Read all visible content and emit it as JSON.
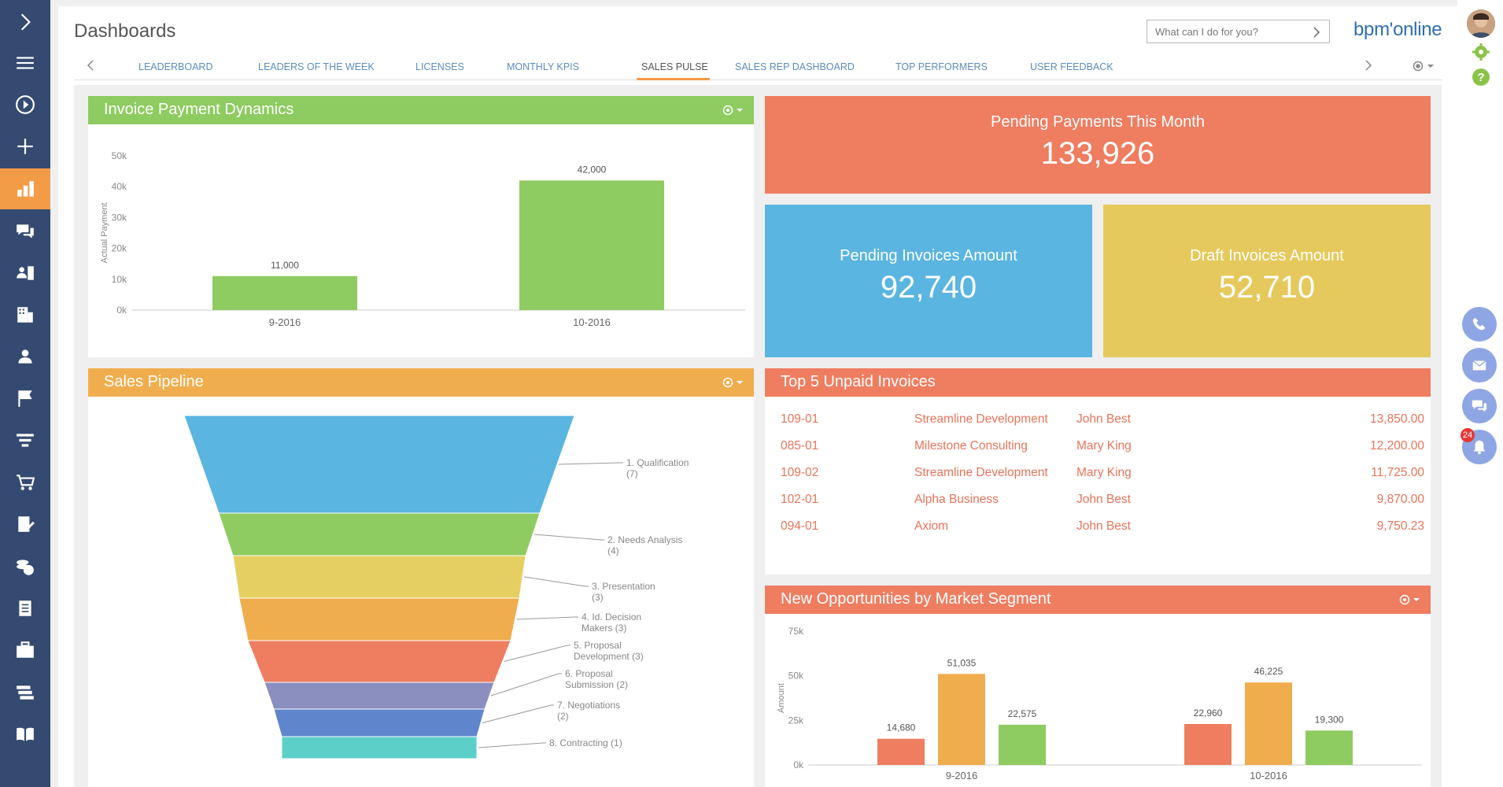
{
  "app": {
    "title": "Dashboards",
    "command_placeholder": "What can I do for you?",
    "logo": "bpm'online"
  },
  "tabs": [
    {
      "label": "LEADERBOARD"
    },
    {
      "label": "LEADERS OF THE WEEK"
    },
    {
      "label": "LICENSES"
    },
    {
      "label": "MONTHLY KPIS"
    },
    {
      "label": "SALES PULSE",
      "active": true
    },
    {
      "label": "SALES REP DASHBOARD"
    },
    {
      "label": "TOP PERFORMERS"
    },
    {
      "label": "USER FEEDBACK"
    }
  ],
  "left_nav": [
    {
      "icon": "chevron-right-icon"
    },
    {
      "icon": "menu-icon"
    },
    {
      "icon": "play-icon"
    },
    {
      "icon": "plus-icon"
    },
    {
      "icon": "bar-chart-icon",
      "active": true
    },
    {
      "icon": "chat-icon"
    },
    {
      "icon": "contacts-icon"
    },
    {
      "icon": "building-icon"
    },
    {
      "icon": "person-icon"
    },
    {
      "icon": "flag-icon"
    },
    {
      "icon": "funnel-icon"
    },
    {
      "icon": "cart-icon"
    },
    {
      "icon": "document-edit-icon"
    },
    {
      "icon": "coins-icon"
    },
    {
      "icon": "document-icon"
    },
    {
      "icon": "briefcase-icon"
    },
    {
      "icon": "stack-icon"
    },
    {
      "icon": "book-icon"
    }
  ],
  "right_sidebar": {
    "actions": [
      {
        "icon": "phone-icon"
      },
      {
        "icon": "email-icon"
      },
      {
        "icon": "chat-icon"
      },
      {
        "icon": "bell-icon"
      }
    ],
    "notification_count": "24"
  },
  "colors": {
    "green": "#8ecb60",
    "orange": "#f0ad4e",
    "red": "#ef7d60",
    "blue": "#5ab5e1",
    "yellow": "#e6c95c",
    "nav_bg": "#354a70",
    "accent": "#f39c48"
  },
  "widgets": {
    "invoice_dynamics": {
      "title": "Invoice Payment Dynamics"
    },
    "pending_payments": {
      "title": "Pending Payments This Month",
      "value": "133,926"
    },
    "pending_invoices": {
      "title": "Pending Invoices Amount",
      "value": "92,740"
    },
    "draft_invoices": {
      "title": "Draft Invoices Amount",
      "value": "52,710"
    },
    "sales_pipeline": {
      "title": "Sales Pipeline"
    },
    "top_unpaid": {
      "title": "Top 5 Unpaid Invoices",
      "rows": [
        {
          "number": "109-01",
          "account": "Streamline Development",
          "owner": "John Best",
          "amount": "13,850.00"
        },
        {
          "number": "085-01",
          "account": "Milestone Consulting",
          "owner": "Mary King",
          "amount": "12,200.00"
        },
        {
          "number": "109-02",
          "account": "Streamline Development",
          "owner": "Mary King",
          "amount": "11,725.00"
        },
        {
          "number": "102-01",
          "account": "Alpha Business",
          "owner": "John Best",
          "amount": "9,870.00"
        },
        {
          "number": "094-01",
          "account": "Axiom",
          "owner": "John Best",
          "amount": "9,750.23"
        }
      ]
    },
    "new_opportunities": {
      "title": "New Opportunities by Market Segment"
    }
  },
  "chart_data": [
    {
      "type": "bar",
      "title": "Invoice Payment Dynamics",
      "categories": [
        "9-2016",
        "10-2016"
      ],
      "values": [
        11000,
        42000
      ],
      "value_labels": [
        "11,000",
        "42,000"
      ],
      "ylabel": "Actual Payment",
      "ylim": [
        0,
        50000
      ],
      "yticks": [
        "0k",
        "10k",
        "20k",
        "30k",
        "40k",
        "50k"
      ],
      "color": "#8ecb60"
    },
    {
      "type": "funnel",
      "title": "Sales Pipeline",
      "stages": [
        {
          "label": "1. Qualification",
          "count": "(7)",
          "color": "#5ab5e1"
        },
        {
          "label": "2. Needs Analysis",
          "count": "(4)",
          "color": "#8ecb60"
        },
        {
          "label": "3. Presentation",
          "count": "(3)",
          "color": "#e6cf62"
        },
        {
          "label": "4. Id. Decision",
          "count": "Makers (3)",
          "color": "#f0ad4e"
        },
        {
          "label": "5. Proposal",
          "count": "Development (3)",
          "color": "#ef7d60"
        },
        {
          "label": "6. Proposal",
          "count": "Submission (2)",
          "color": "#8b8fbf"
        },
        {
          "label": "7. Negotiations",
          "count": "(2)",
          "color": "#5f86cc"
        },
        {
          "label": "8. Contracting (1)",
          "count": "",
          "color": "#5ccfc8"
        }
      ]
    },
    {
      "type": "bar",
      "title": "New Opportunities by Market Segment",
      "categories": [
        "9-2016",
        "10-2016"
      ],
      "series": [
        {
          "values": [
            14680,
            22960
          ],
          "labels": [
            "14,680",
            "22,960"
          ],
          "color": "#ef7d60"
        },
        {
          "values": [
            51035,
            46225
          ],
          "labels": [
            "51,035",
            "46,225"
          ],
          "color": "#f0ad4e"
        },
        {
          "values": [
            22575,
            19300
          ],
          "labels": [
            "22,575",
            "19,300"
          ],
          "color": "#8ecb60"
        }
      ],
      "ylabel": "Amount",
      "ylim": [
        0,
        75000
      ],
      "yticks": [
        "0k",
        "25k",
        "50k",
        "75k"
      ]
    }
  ]
}
